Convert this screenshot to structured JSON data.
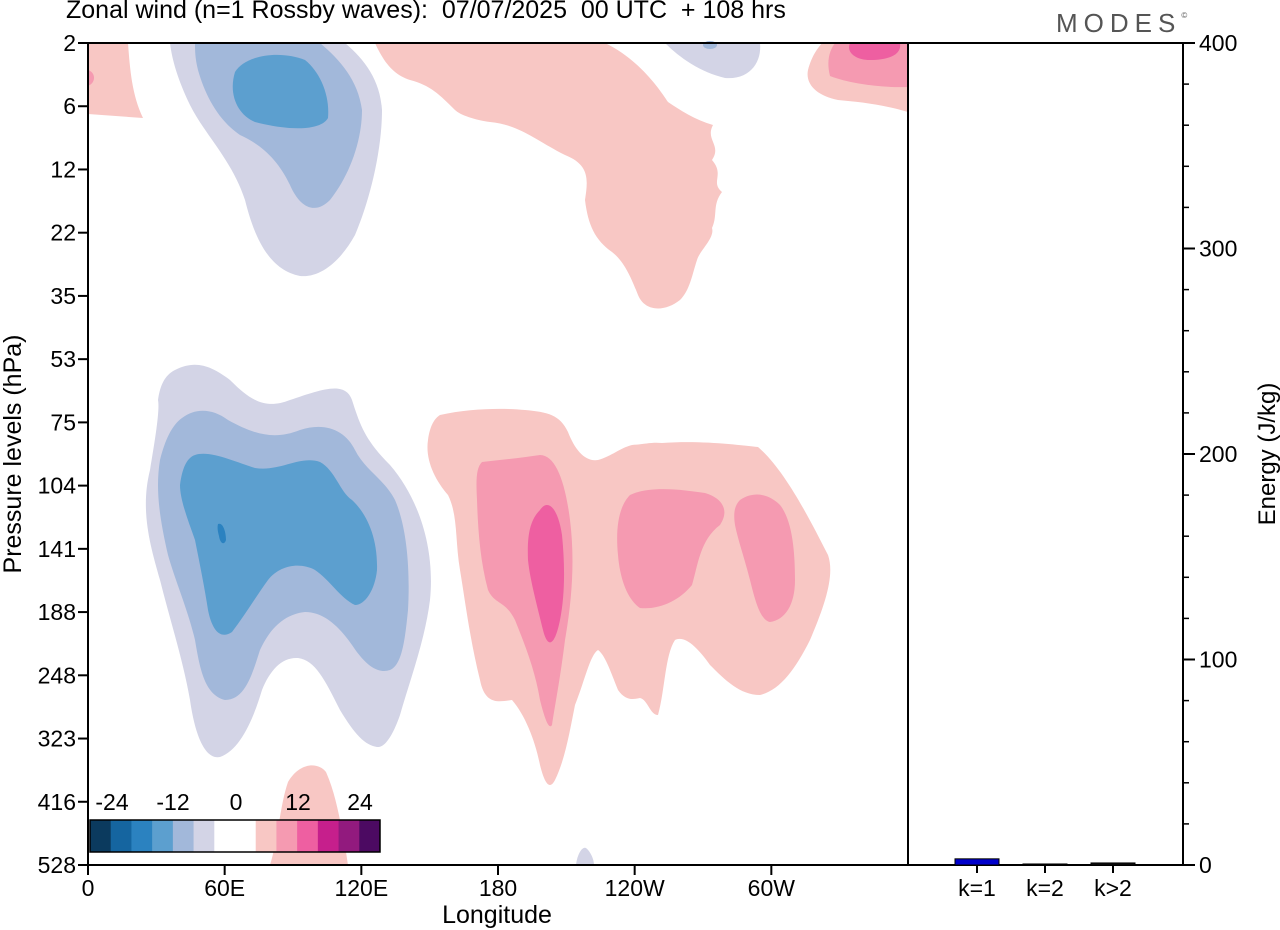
{
  "title": "Zonal wind (n=1 Rossby waves):  07/07/2025  00 UTC  + 108 hrs",
  "logo": "MODES",
  "logo_mark": "©",
  "chart_data": [
    {
      "type": "heatmap",
      "xlabel": "Longitude",
      "ylabel": "Pressure levels (hPa)",
      "x_ticks": [
        {
          "label": "0",
          "lon": 0
        },
        {
          "label": "60E",
          "lon": 60
        },
        {
          "label": "120E",
          "lon": 120
        },
        {
          "label": "180",
          "lon": 180
        },
        {
          "label": "120W",
          "lon": 240
        },
        {
          "label": "60W",
          "lon": 300
        }
      ],
      "xlim": [
        0,
        360
      ],
      "y_ticks": [
        "2",
        "6",
        "12",
        "22",
        "35",
        "53",
        "75",
        "104",
        "141",
        "188",
        "248",
        "323",
        "416",
        "528"
      ],
      "colorbar": {
        "labels": [
          "-24",
          "-12",
          "0",
          "12",
          "24"
        ],
        "colors": [
          "#0b3a5e",
          "#1565a0",
          "#2b82c0",
          "#5c9fcf",
          "#a2b8da",
          "#d3d4e6",
          "#ffffff",
          "#ffffff",
          "#f8c7c4",
          "#f59ab1",
          "#ee5fa1",
          "#c61f8c",
          "#921a7e",
          "#4c0a62"
        ]
      },
      "fields": [
        {
          "name": "negative",
          "levels": [
            {
              "value": -3,
              "color": "#d3d4e6"
            },
            {
              "value": -6,
              "color": "#a2b8da"
            },
            {
              "value": -9,
              "color": "#5c9fcf"
            },
            {
              "value": -12,
              "color": "#2b82c0"
            }
          ]
        },
        {
          "name": "positive",
          "levels": [
            {
              "value": 3,
              "color": "#f8c7c4"
            },
            {
              "value": 6,
              "color": "#f59ab1"
            },
            {
              "value": 9,
              "color": "#ee5fa1"
            },
            {
              "value": 12,
              "color": "#c61f8c"
            }
          ]
        }
      ],
      "features": [
        {
          "sign": "negative",
          "peak": -10.5,
          "lon": [
            35,
            125
          ],
          "level": [
            "2",
            "35"
          ]
        },
        {
          "sign": "positive",
          "peak": 10.5,
          "lon": [
            150,
            360
          ],
          "level": [
            "2",
            "35"
          ]
        },
        {
          "sign": "negative",
          "peak": -13,
          "lon": [
            25,
            150
          ],
          "level": [
            "53",
            "323"
          ]
        },
        {
          "sign": "positive",
          "peak": 10.5,
          "lon": [
            150,
            330
          ],
          "level": [
            "75",
            "416"
          ]
        },
        {
          "sign": "positive",
          "peak": 4,
          "lon": [
            80,
            115
          ],
          "level": [
            "416",
            "528"
          ]
        }
      ]
    },
    {
      "type": "bar",
      "categories": [
        "k=1",
        "k=2",
        "k>2"
      ],
      "values": [
        3,
        0.5,
        1
      ],
      "ylabel": "Energy (J/kg)",
      "ylim": [
        0,
        400
      ],
      "y_ticks": [
        0,
        100,
        200,
        300,
        400
      ],
      "bar_color": "#0000cc"
    }
  ]
}
